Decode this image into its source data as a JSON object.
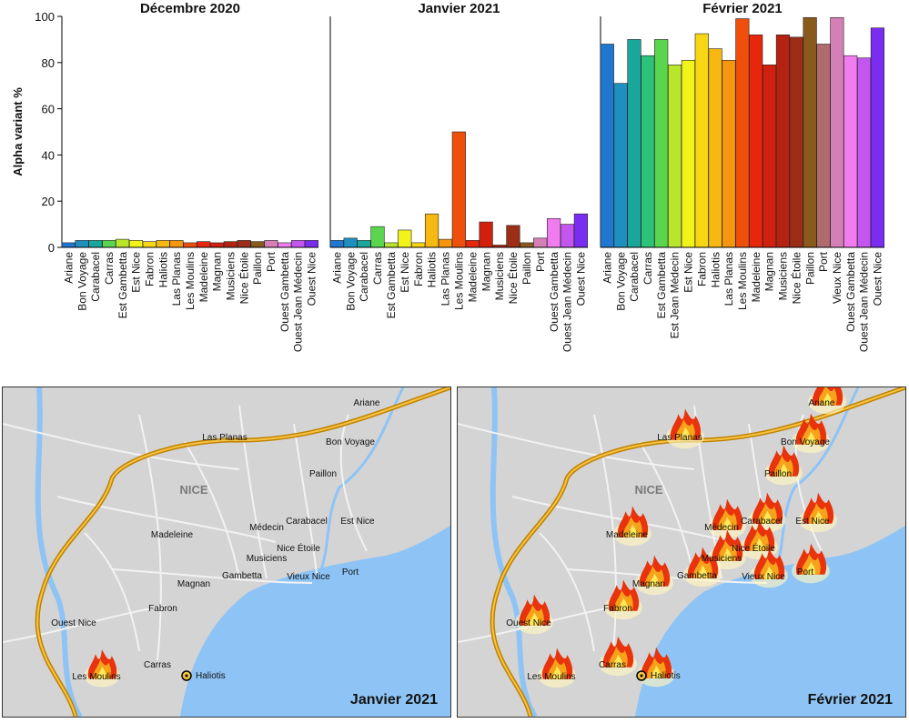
{
  "colors": [
    "#1f77d0",
    "#1e8fbf",
    "#1aa69a",
    "#2cc27a",
    "#5ad64e",
    "#b8e62c",
    "#f3f31c",
    "#f7d613",
    "#f7b812",
    "#f5960e",
    "#f2740c",
    "#ef4f0b",
    "#e8260c",
    "#d2200f",
    "#b62212",
    "#9c2e18",
    "#8a5a1d",
    "#b06c6c",
    "#d47fb6",
    "#f07cf0",
    "#c456f0",
    "#7a2df0"
  ],
  "chart_data": [
    {
      "type": "bar",
      "title": "Décembre 2020",
      "ylabel": "Alpha variant %",
      "ylim": [
        0,
        100
      ],
      "yticks": [
        "0",
        "20",
        "40",
        "60",
        "80",
        "100"
      ],
      "categories": [
        "Ariane",
        "Bon Voyage",
        "Carabacel",
        "Carras",
        "Est Gambetta",
        "Est Nice",
        "Fabron",
        "Haliotis",
        "Las Planas",
        "Les Moulins",
        "Madeleine",
        "Magnan",
        "Musiciens",
        "Nice Étoile",
        "Paillon",
        "Port",
        "Ouest Gambetta",
        "Ouest Jean Médecin",
        "Ouest Nice"
      ],
      "values": [
        2,
        3,
        3,
        3,
        3.5,
        3,
        2.5,
        3,
        3,
        2,
        2.5,
        2,
        2.5,
        3,
        2.5,
        3,
        2,
        3,
        3
      ]
    },
    {
      "type": "bar",
      "title": "Janvier 2021",
      "ylabel": "",
      "ylim": [
        0,
        100
      ],
      "categories": [
        "Ariane",
        "Bon Voyage",
        "Carabacel",
        "Carras",
        "Est Gambetta",
        "Est Nice",
        "Fabron",
        "Haliotis",
        "Las Planas",
        "Les Moulins",
        "Madeleine",
        "Magnan",
        "Musiciens",
        "Nice Étoile",
        "Paillon",
        "Port",
        "Ouest Gambetta",
        "Ouest Jean Médecin",
        "Ouest Nice"
      ],
      "values": [
        3,
        4,
        3,
        9,
        2,
        7.5,
        2,
        14.5,
        3.5,
        50,
        3,
        11,
        1,
        9.5,
        2,
        4,
        12.5,
        10,
        14.5
      ]
    },
    {
      "type": "bar",
      "title": "Février 2021",
      "ylabel": "",
      "ylim": [
        0,
        100
      ],
      "categories": [
        "Ariane",
        "Bon Voyage",
        "Carabacel",
        "Carras",
        "Est Gambetta",
        "Est Jean Médecin",
        "Est Nice",
        "Fabron",
        "Haliotis",
        "Las Planas",
        "Les Moulins",
        "Madeleine",
        "Magnan",
        "Musiciens",
        "Nice Étoile",
        "Paillon",
        "Port",
        "Vieux Nice",
        "Ouest Gambetta",
        "Ouest Jean Médecin",
        "Ouest Nice"
      ],
      "values": [
        88,
        71,
        90,
        83,
        90,
        79,
        81,
        92.5,
        86,
        81,
        99,
        92,
        79,
        92,
        91,
        99.5,
        88,
        99.5,
        83,
        82,
        95
      ]
    }
  ],
  "maps": [
    {
      "title": "Janvier 2021",
      "city": "NICE",
      "labels": [
        "Ariane",
        "Las Planas",
        "Bon Voyage",
        "Paillon",
        "Carabacel",
        "Médecin",
        "Est Nice",
        "Madeleine",
        "Nice Étoile",
        "Musiciens",
        "Gambetta",
        "Vieux Nice",
        "Port",
        "Magnan",
        "Fabron",
        "Ouest Nice",
        "Carras",
        "Haliotis",
        "Les Moulins"
      ]
    },
    {
      "title": "Février 2021",
      "city": "NICE",
      "labels": [
        "Ariane",
        "Las Planas",
        "Bon Voyage",
        "Paillon",
        "Carabacel",
        "Médecin",
        "Est Nice",
        "Madeleine",
        "Nice Étoile",
        "Musiciens",
        "Gambetta",
        "Vieux Nice",
        "Port",
        "Magnan",
        "Fabron",
        "Ouest Nice",
        "Carras",
        "Haliotis",
        "Les Moulins"
      ]
    }
  ]
}
